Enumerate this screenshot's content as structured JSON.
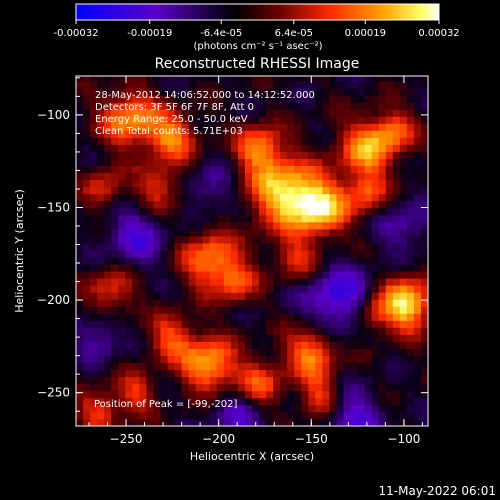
{
  "colorbar": {
    "tick_labels": [
      "-0.00032",
      "-0.00019",
      "-6.4e-05",
      "6.4e-05",
      "0.00019",
      "0.00032"
    ],
    "tick_values": [
      -0.00032,
      -0.00019,
      -6.4e-05,
      6.4e-05,
      0.00019,
      0.00032
    ],
    "range": [
      -0.00032,
      0.00032
    ],
    "units": "(photons cm⁻² s⁻¹ asec⁻²)",
    "colors": [
      "#0000ff",
      "#5a00c8",
      "#000000",
      "#8b0000",
      "#ff3300",
      "#ffa500",
      "#ffff66",
      "#ffffff"
    ]
  },
  "chart_data": {
    "type": "heatmap",
    "title": "Reconstructed RHESSI Image",
    "xlabel": "Heliocentric X (arcsec)",
    "ylabel": "Heliocentric Y (arcsec)",
    "xlim": [
      -277,
      -87
    ],
    "ylim": [
      -268,
      -79
    ],
    "x_ticks": [
      -250,
      -200,
      -150,
      -100
    ],
    "y_ticks": [
      -100,
      -150,
      -200,
      -250
    ],
    "x_tick_labels": [
      "−250",
      "−200",
      "−150",
      "−100"
    ],
    "y_tick_labels": [
      "−100",
      "−150",
      "−200",
      "−250"
    ],
    "grid": false,
    "info_lines": [
      "28-May-2012 14:06:52.000 to 14:12:52.000",
      "Detectors: 3F 5F 6F 7F 8F, Att 0",
      "Energy Range: 25.0 - 50.0 keV",
      "Clean      Total counts: 5.71E+03"
    ],
    "peak_label": "Position of Peak = [-99,-202]",
    "peak": [
      -99,
      -202
    ],
    "sources": [
      {
        "x": -248,
        "y": -102,
        "amp": 0.75,
        "sigma": 11
      },
      {
        "x": -225,
        "y": -112,
        "amp": 0.7,
        "sigma": 9
      },
      {
        "x": -178,
        "y": -118,
        "amp": 0.7,
        "sigma": 9
      },
      {
        "x": -120,
        "y": -118,
        "amp": 0.75,
        "sigma": 11
      },
      {
        "x": -105,
        "y": -108,
        "amp": 0.5,
        "sigma": 8
      },
      {
        "x": -262,
        "y": -140,
        "amp": 0.45,
        "sigma": 8
      },
      {
        "x": -232,
        "y": -140,
        "amp": 0.5,
        "sigma": 9
      },
      {
        "x": -165,
        "y": -142,
        "amp": 0.9,
        "sigma": 13
      },
      {
        "x": -145,
        "y": -150,
        "amp": 0.85,
        "sigma": 11
      },
      {
        "x": -120,
        "y": -142,
        "amp": 0.5,
        "sigma": 8
      },
      {
        "x": -205,
        "y": -178,
        "amp": 0.7,
        "sigma": 11
      },
      {
        "x": -190,
        "y": -190,
        "amp": 0.5,
        "sigma": 8
      },
      {
        "x": -158,
        "y": -178,
        "amp": 0.45,
        "sigma": 8
      },
      {
        "x": -258,
        "y": -195,
        "amp": 0.5,
        "sigma": 9
      },
      {
        "x": -99,
        "y": -202,
        "amp": 1.0,
        "sigma": 10
      },
      {
        "x": -118,
        "y": -208,
        "amp": 0.45,
        "sigma": 7
      },
      {
        "x": -225,
        "y": -220,
        "amp": 0.55,
        "sigma": 9
      },
      {
        "x": -150,
        "y": -228,
        "amp": 0.7,
        "sigma": 10
      },
      {
        "x": -205,
        "y": -235,
        "amp": 0.85,
        "sigma": 10
      },
      {
        "x": -178,
        "y": -245,
        "amp": 0.55,
        "sigma": 9
      },
      {
        "x": -145,
        "y": -252,
        "amp": 0.5,
        "sigma": 8
      },
      {
        "x": -245,
        "y": -250,
        "amp": 0.45,
        "sigma": 8
      },
      {
        "x": -265,
        "y": -260,
        "amp": 0.5,
        "sigma": 8
      }
    ],
    "negatives": [
      {
        "x": -135,
        "y": -200,
        "amp": -0.6,
        "sigma": 13
      },
      {
        "x": -245,
        "y": -165,
        "amp": -0.45,
        "sigma": 12
      },
      {
        "x": -190,
        "y": -262,
        "amp": -0.4,
        "sigma": 10
      },
      {
        "x": -128,
        "y": -262,
        "amp": -0.5,
        "sigma": 10
      },
      {
        "x": -100,
        "y": -160,
        "amp": -0.35,
        "sigma": 10
      },
      {
        "x": -205,
        "y": -140,
        "amp": -0.3,
        "sigma": 10
      },
      {
        "x": -265,
        "y": -220,
        "amp": -0.35,
        "sigma": 9
      }
    ]
  },
  "footer": {
    "timestamp": "11-May-2022 06:01"
  }
}
